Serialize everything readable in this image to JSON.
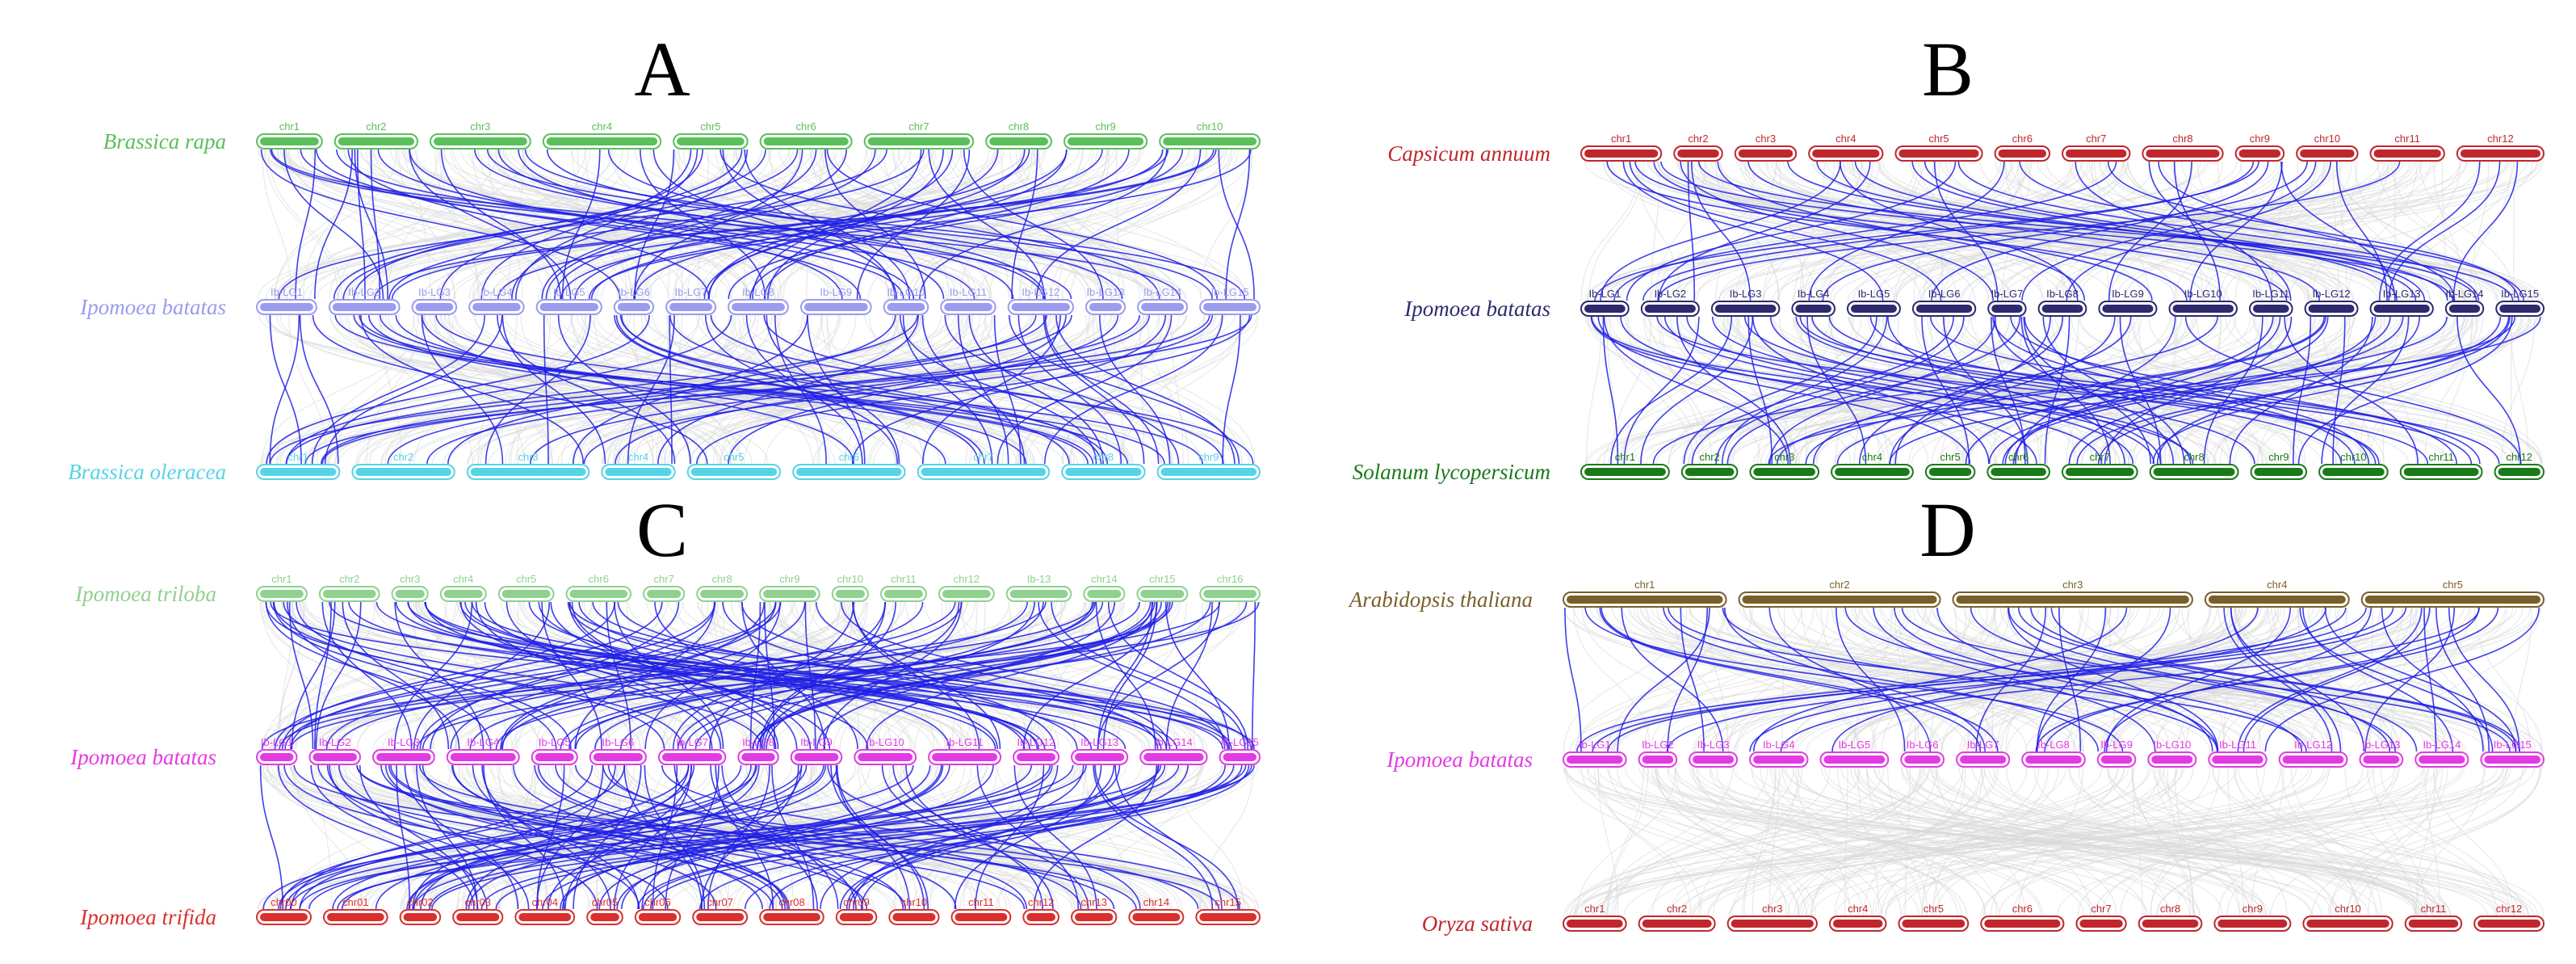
{
  "colors": {
    "link_highlight": "#1f1fe6",
    "link_background": "#d9d9d9"
  },
  "panels": [
    {
      "letter": "A",
      "tracks": [
        {
          "species": "Brassica rapa",
          "color": "#5bbf5b",
          "chromosomes": [
            "chr1",
            "chr2",
            "chr3",
            "chr4",
            "chr5",
            "chr6",
            "chr7",
            "chr8",
            "chr9",
            "chr10"
          ]
        },
        {
          "species": "Ipomoea batatas",
          "color": "#9b9bef",
          "chromosomes": [
            "Ib-LG1",
            "Ib-LG2",
            "Ib-LG3",
            "Ib-LG4",
            "Ib-LG5",
            "Ib-LG6",
            "Ib-LG7",
            "Ib-LG8",
            "Ib-LG9",
            "Ib-LG10",
            "Ib-LG11",
            "Ib-LG12",
            "Ib-LG13",
            "Ib-LG14",
            "Ib-LG15"
          ]
        },
        {
          "species": "Brassica oleracea",
          "color": "#55d4e6",
          "chromosomes": [
            "chr1",
            "chr2",
            "chr3",
            "chr4",
            "chr5",
            "chr6",
            "chr7",
            "chr8",
            "chr9"
          ]
        }
      ]
    },
    {
      "letter": "B",
      "tracks": [
        {
          "species": "Capsicum annuum",
          "color": "#c0272d",
          "chromosomes": [
            "chr1",
            "chr2",
            "chr3",
            "chr4",
            "chr5",
            "chr6",
            "chr7",
            "chr8",
            "chr9",
            "chr10",
            "chr11",
            "chr12"
          ]
        },
        {
          "species": "Ipomoea batatas",
          "color": "#2d2a6e",
          "chromosomes": [
            "Ib-LG1",
            "Ib-LG2",
            "Ib-LG3",
            "Ib-LG4",
            "Ib-LG5",
            "Ib-LG6",
            "Ib-LG7",
            "Ib-LG8",
            "Ib-LG9",
            "Ib-LG10",
            "Ib-LG11",
            "Ib-LG12",
            "Ib-LG13",
            "Ib-LG14",
            "Ib-LG15"
          ]
        },
        {
          "species": "Solanum lycopersicum",
          "color": "#1a7a1a",
          "chromosomes": [
            "chr1",
            "chr2",
            "chr3",
            "chr4",
            "chr5",
            "chr6",
            "chr7",
            "chr8",
            "chr9",
            "chr10",
            "chr11",
            "chr12"
          ]
        }
      ]
    },
    {
      "letter": "C",
      "tracks": [
        {
          "species": "Ipomoea triloba",
          "color": "#8fd18f",
          "chromosomes": [
            "chr1",
            "chr2",
            "chr3",
            "chr4",
            "chr5",
            "chr6",
            "chr7",
            "chr8",
            "chr9",
            "chr10",
            "chr11",
            "chr12",
            "Ib-13",
            "chr14",
            "chr15",
            "chr16"
          ]
        },
        {
          "species": "Ipomoea batatas",
          "color": "#e33be3",
          "chromosomes": [
            "Ib-LG1",
            "Ib-LG2",
            "Ib-LG3",
            "Ib-LG4",
            "Ib-LG5",
            "Ib-LG6",
            "Ib-LG7",
            "Ib-LG8",
            "Ib-LG9",
            "Ib-LG10",
            "Ib-LG11",
            "Ib-LG12",
            "Ib-LG13",
            "Ib-LG14",
            "Ib-LG15"
          ]
        },
        {
          "species": "Ipomoea trifida",
          "color": "#d9302e",
          "chromosomes": [
            "chr00",
            "chr01",
            "chr02",
            "chr03",
            "chr04",
            "chr05",
            "chr06",
            "chr07",
            "chr08",
            "chr09",
            "chr10",
            "chr11",
            "chr12",
            "chr13",
            "chr14",
            "chr15"
          ]
        }
      ]
    },
    {
      "letter": "D",
      "tracks": [
        {
          "species": "Arabidopsis thaliana",
          "color": "#7a5f2a",
          "chromosomes": [
            "chr1",
            "chr2",
            "chr3",
            "chr4",
            "chr5"
          ]
        },
        {
          "species": "Ipomoea batatas",
          "color": "#e33be3",
          "chromosomes": [
            "Ib-LG1",
            "Ib-LG2",
            "Ib-LG3",
            "Ib-LG4",
            "Ib-LG5",
            "Ib-LG6",
            "Ib-LG7",
            "Ib-LG8",
            "Ib-LG9",
            "Ib-LG10",
            "Ib-LG11",
            "Ib-LG12",
            "Ib-LG13",
            "Ib-LG14",
            "Ib-LG15"
          ]
        },
        {
          "species": "Oryza sativa",
          "color": "#c0272d",
          "chromosomes": [
            "chr1",
            "chr2",
            "chr3",
            "chr4",
            "chr5",
            "chr6",
            "chr7",
            "chr8",
            "chr9",
            "chr10",
            "chr11",
            "chr12"
          ]
        }
      ]
    }
  ]
}
